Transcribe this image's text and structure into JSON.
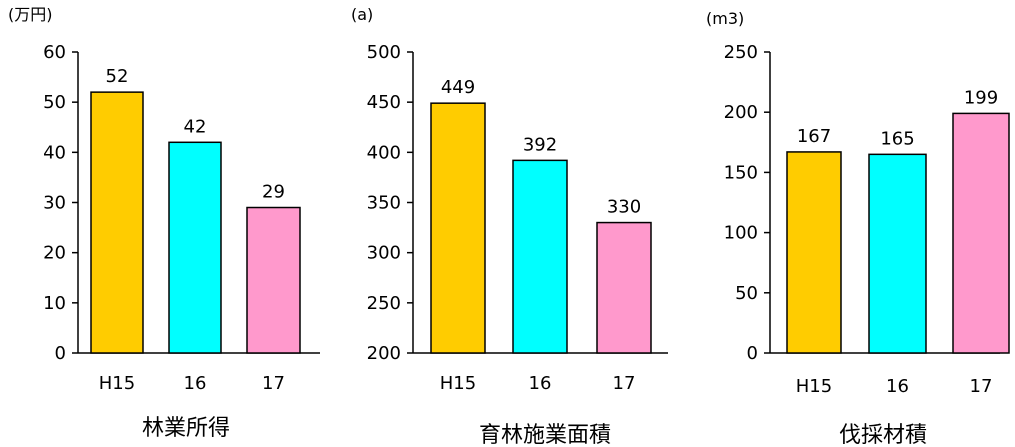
{
  "chart_data": [
    {
      "type": "bar",
      "title": "林業所得",
      "ylabel": "(万円)",
      "categories": [
        "H15",
        "16",
        "17"
      ],
      "values": [
        52,
        42,
        29
      ],
      "data_labels": [
        "52",
        "42",
        "29"
      ],
      "ylim": [
        0,
        60
      ],
      "yticks": [
        0,
        10,
        20,
        30,
        40,
        50,
        60
      ],
      "ytick_labels": [
        "0",
        "10",
        "20",
        "30",
        "40",
        "50",
        "60"
      ],
      "colors": [
        "#ffcc00",
        "#00ffff",
        "#ff99cc"
      ],
      "grid": false
    },
    {
      "type": "bar",
      "title": "育林施業面積",
      "ylabel": "(a)",
      "categories": [
        "H15",
        "16",
        "17"
      ],
      "values": [
        449,
        392,
        330
      ],
      "data_labels": [
        "449",
        "392",
        "330"
      ],
      "ylim": [
        200,
        500
      ],
      "yticks": [
        200,
        250,
        300,
        350,
        400,
        450,
        500
      ],
      "ytick_labels": [
        "200",
        "250",
        "300",
        "350",
        "400",
        "450",
        "500"
      ],
      "colors": [
        "#ffcc00",
        "#00ffff",
        "#ff99cc"
      ],
      "grid": false
    },
    {
      "type": "bar",
      "title": "伐採材積",
      "ylabel": "(m3)",
      "categories": [
        "H15",
        "16",
        "17"
      ],
      "values": [
        167,
        165,
        199
      ],
      "data_labels": [
        "167",
        "165",
        "199"
      ],
      "ylim": [
        0,
        250
      ],
      "yticks": [
        0,
        50,
        100,
        150,
        200,
        250
      ],
      "ytick_labels": [
        "0",
        "50",
        "100",
        "150",
        "200",
        "250"
      ],
      "colors": [
        "#ffcc00",
        "#00ffff",
        "#ff99cc"
      ],
      "grid": false
    }
  ]
}
